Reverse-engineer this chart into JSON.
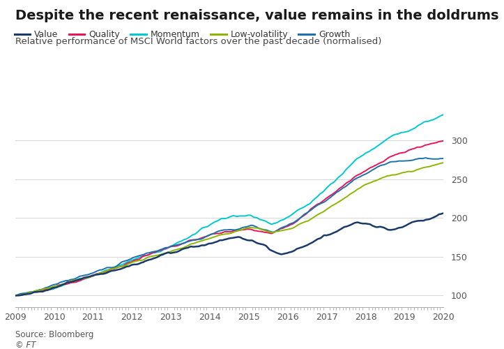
{
  "title": "Despite the recent renaissance, value remains in the doldrums",
  "subtitle": "Relative performance of MSCI World factors over the past decade (normalised)",
  "source": "Source: Bloomberg",
  "copyright": "© FT",
  "legend": [
    "Value",
    "Quality",
    "Momentum",
    "Low-volatility",
    "Growth"
  ],
  "colors": {
    "Value": "#1a3a6b",
    "Quality": "#e8145a",
    "Momentum": "#00c8d2",
    "Low-volatility": "#8db600",
    "Growth": "#1e6fad"
  },
  "ylim": [
    85,
    355
  ],
  "yticks": [
    100,
    150,
    200,
    250,
    300
  ],
  "background_color": "#ffffff",
  "grid_color": "#d0d0d0",
  "title_fontsize": 14,
  "subtitle_fontsize": 9.5,
  "axis_fontsize": 9,
  "legend_fontsize": 9
}
